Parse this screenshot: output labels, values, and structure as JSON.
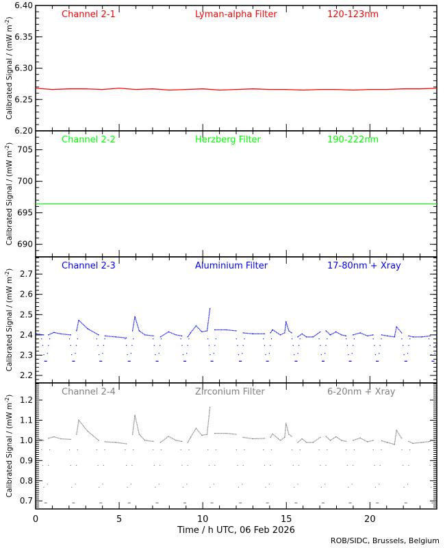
{
  "chart_data": [
    {
      "type": "line",
      "channel": "Channel 2-1",
      "filter": "Lyman-alpha Filter",
      "wavelength": "120-123nm",
      "color": "#ff0000",
      "ylabel": {
        "main": "Calibrated Signal / (mW m",
        "exp": "-2",
        "close": ")"
      },
      "ylim": [
        6.2,
        6.4
      ],
      "yticks": [
        "6.20",
        "6.25",
        "6.30",
        "6.35",
        "6.40"
      ],
      "yminor": 0.01,
      "segments": [
        [
          [
            0,
            6.268
          ],
          [
            1,
            6.266
          ],
          [
            2,
            6.267
          ],
          [
            3,
            6.267
          ],
          [
            4,
            6.266
          ],
          [
            5,
            6.268
          ],
          [
            6,
            6.266
          ],
          [
            7,
            6.267
          ],
          [
            8,
            6.265
          ],
          [
            9,
            6.266
          ],
          [
            10,
            6.267
          ],
          [
            11,
            6.265
          ],
          [
            12,
            6.266
          ],
          [
            13,
            6.267
          ],
          [
            14,
            6.266
          ],
          [
            15,
            6.266
          ],
          [
            16,
            6.265
          ],
          [
            17,
            6.266
          ],
          [
            18,
            6.266
          ],
          [
            19,
            6.265
          ],
          [
            20,
            6.266
          ],
          [
            21,
            6.266
          ],
          [
            22,
            6.267
          ],
          [
            23,
            6.267
          ],
          [
            24,
            6.268
          ]
        ]
      ]
    },
    {
      "type": "line",
      "channel": "Channel 2-2",
      "filter": "Herzberg Filter",
      "wavelength": "190-222nm",
      "color": "#00ff00",
      "ylabel": {
        "main": "Calibrated Signal / (mW m",
        "exp": "-2",
        "close": ")"
      },
      "ylim": [
        688,
        708
      ],
      "yticks": [
        "690",
        "695",
        "700",
        "705"
      ],
      "yminor": 1,
      "segments": [
        [
          [
            0,
            696.4
          ],
          [
            24,
            696.4
          ]
        ]
      ]
    },
    {
      "type": "scatter",
      "channel": "Channel 2-3",
      "filter": "Aluminium Filter",
      "wavelength": "17-80nm + Xray",
      "color": "#0000ff",
      "ylabel": {
        "main": "Calibrated Signal / (mW m",
        "exp": "-2",
        "close": ")"
      },
      "ylim": [
        2.163,
        2.785
      ],
      "yticks": [
        "2.2",
        "2.3",
        "2.4",
        "2.5",
        "2.6",
        "2.7"
      ],
      "yminor": 0.02,
      "segments": [
        [
          [
            0.05,
            2.405
          ],
          [
            0.48,
            2.4
          ]
        ],
        [
          [
            0.77,
            2.4
          ],
          [
            1.1,
            2.412
          ],
          [
            1.5,
            2.405
          ],
          [
            2.1,
            2.4
          ]
        ],
        [
          [
            2.45,
            2.42
          ],
          [
            2.58,
            2.472
          ],
          [
            3.12,
            2.43
          ],
          [
            3.77,
            2.4
          ]
        ],
        [
          [
            4.15,
            2.395
          ],
          [
            4.8,
            2.39
          ],
          [
            5.43,
            2.385
          ]
        ],
        [
          [
            5.8,
            2.42
          ],
          [
            5.94,
            2.49
          ],
          [
            6.2,
            2.42
          ],
          [
            6.54,
            2.4
          ],
          [
            7.05,
            2.395
          ]
        ],
        [
          [
            7.47,
            2.39
          ],
          [
            7.95,
            2.415
          ],
          [
            8.4,
            2.4
          ],
          [
            8.75,
            2.395
          ]
        ],
        [
          [
            9.1,
            2.39
          ],
          [
            9.27,
            2.41
          ],
          [
            9.6,
            2.445
          ],
          [
            9.95,
            2.415
          ],
          [
            10.26,
            2.42
          ],
          [
            10.43,
            2.53
          ]
        ],
        [
          [
            10.72,
            2.425
          ],
          [
            11.4,
            2.425
          ],
          [
            12.0,
            2.42
          ]
        ],
        [
          [
            12.42,
            2.41
          ],
          [
            13.0,
            2.405
          ],
          [
            13.7,
            2.405
          ]
        ],
        [
          [
            14.05,
            2.41
          ],
          [
            14.18,
            2.425
          ],
          [
            14.64,
            2.4
          ],
          [
            14.9,
            2.41
          ],
          [
            14.98,
            2.465
          ],
          [
            15.15,
            2.42
          ],
          [
            15.32,
            2.41
          ]
        ],
        [
          [
            15.68,
            2.39
          ],
          [
            15.94,
            2.405
          ],
          [
            16.2,
            2.39
          ],
          [
            16.6,
            2.39
          ],
          [
            17.03,
            2.415
          ]
        ],
        [
          [
            17.37,
            2.42
          ],
          [
            17.63,
            2.4
          ],
          [
            17.97,
            2.415
          ],
          [
            18.3,
            2.4
          ],
          [
            18.57,
            2.395
          ]
        ],
        [
          [
            18.99,
            2.4
          ],
          [
            19.42,
            2.41
          ],
          [
            19.85,
            2.395
          ],
          [
            20.19,
            2.4
          ]
        ],
        [
          [
            20.7,
            2.4
          ],
          [
            21.04,
            2.395
          ],
          [
            21.47,
            2.39
          ],
          [
            21.59,
            2.44
          ],
          [
            21.9,
            2.41
          ]
        ],
        [
          [
            22.32,
            2.395
          ],
          [
            22.58,
            2.39
          ],
          [
            23.1,
            2.39
          ],
          [
            23.6,
            2.395
          ]
        ],
        [
          [
            23.94,
            2.4
          ]
        ]
      ],
      "dips": {
        "hours": [
          0.6,
          2.27,
          3.9,
          5.6,
          7.27,
          8.93,
          10.55,
          12.25,
          13.87,
          15.58,
          17.2,
          18.82,
          20.44,
          22.15,
          23.77
        ],
        "min": 2.27,
        "baseline": 2.4
      }
    },
    {
      "type": "scatter",
      "channel": "Channel 2-4",
      "filter": "Zirconium Filter",
      "wavelength": "6-20nm + Xray",
      "color": "#808080",
      "ylabel": {
        "main": "Calibrated Signal / (mW m",
        "exp": "-2",
        "close": ")"
      },
      "ylim": [
        0.66,
        1.285
      ],
      "yticks": [
        "0.7",
        "0.8",
        "0.9",
        "1.0",
        "1.1",
        "1.2"
      ],
      "yminor": 0.01,
      "xlabel": "Time / h UTC, 06 Feb 2026",
      "xlim": [
        0,
        24
      ],
      "xticks": [
        "0",
        "5",
        "10",
        "15",
        "20"
      ],
      "segments": [
        [
          [
            0.05,
            1.01
          ],
          [
            0.48,
            1.0
          ]
        ],
        [
          [
            0.77,
            1.01
          ],
          [
            1.1,
            1.018
          ],
          [
            1.5,
            1.008
          ],
          [
            2.1,
            1.005
          ]
        ],
        [
          [
            2.45,
            1.03
          ],
          [
            2.58,
            1.1
          ],
          [
            3.12,
            1.045
          ],
          [
            3.77,
            1.0
          ]
        ],
        [
          [
            4.15,
            0.993
          ],
          [
            4.8,
            0.99
          ],
          [
            5.43,
            0.983
          ]
        ],
        [
          [
            5.8,
            1.03
          ],
          [
            5.94,
            1.125
          ],
          [
            6.2,
            1.03
          ],
          [
            6.54,
            1.0
          ],
          [
            7.05,
            0.995
          ]
        ],
        [
          [
            7.47,
            0.99
          ],
          [
            7.95,
            1.02
          ],
          [
            8.4,
            1.0
          ],
          [
            8.75,
            0.995
          ]
        ],
        [
          [
            9.1,
            0.99
          ],
          [
            9.27,
            1.015
          ],
          [
            9.6,
            1.06
          ],
          [
            9.95,
            1.025
          ],
          [
            10.26,
            1.03
          ],
          [
            10.43,
            1.165
          ]
        ],
        [
          [
            10.72,
            1.035
          ],
          [
            11.4,
            1.035
          ],
          [
            12.0,
            1.03
          ]
        ],
        [
          [
            12.42,
            1.015
          ],
          [
            13.0,
            1.008
          ],
          [
            13.7,
            1.01
          ]
        ],
        [
          [
            14.05,
            1.015
          ],
          [
            14.18,
            1.032
          ],
          [
            14.64,
            1.0
          ],
          [
            14.9,
            1.015
          ],
          [
            14.98,
            1.085
          ],
          [
            15.15,
            1.03
          ],
          [
            15.32,
            1.02
          ]
        ],
        [
          [
            15.68,
            0.99
          ],
          [
            15.94,
            1.008
          ],
          [
            16.2,
            0.99
          ],
          [
            16.6,
            0.99
          ],
          [
            17.03,
            1.015
          ]
        ],
        [
          [
            17.37,
            1.02
          ],
          [
            17.63,
            1.0
          ],
          [
            17.97,
            1.018
          ],
          [
            18.3,
            1.0
          ],
          [
            18.57,
            0.995
          ]
        ],
        [
          [
            18.99,
            1.0
          ],
          [
            19.42,
            1.012
          ],
          [
            19.85,
            0.993
          ],
          [
            20.19,
            1.0
          ]
        ],
        [
          [
            20.7,
            0.998
          ],
          [
            21.04,
            0.99
          ],
          [
            21.47,
            0.98
          ],
          [
            21.59,
            1.05
          ],
          [
            21.9,
            1.01
          ]
        ],
        [
          [
            22.32,
            0.995
          ],
          [
            22.58,
            0.985
          ],
          [
            23.1,
            0.99
          ],
          [
            23.6,
            0.995
          ]
        ],
        [
          [
            23.94,
            1.0
          ]
        ]
      ],
      "dips": {
        "hours": [
          0.6,
          2.27,
          3.9,
          5.6,
          7.27,
          8.93,
          10.55,
          12.25,
          13.87,
          15.58,
          17.2,
          18.82,
          20.44,
          22.15,
          23.77
        ],
        "min": 0.69,
        "baseline": 1.0
      }
    }
  ],
  "footer": {
    "credit": "ROB/SIDC, Brussels, Belgium"
  }
}
